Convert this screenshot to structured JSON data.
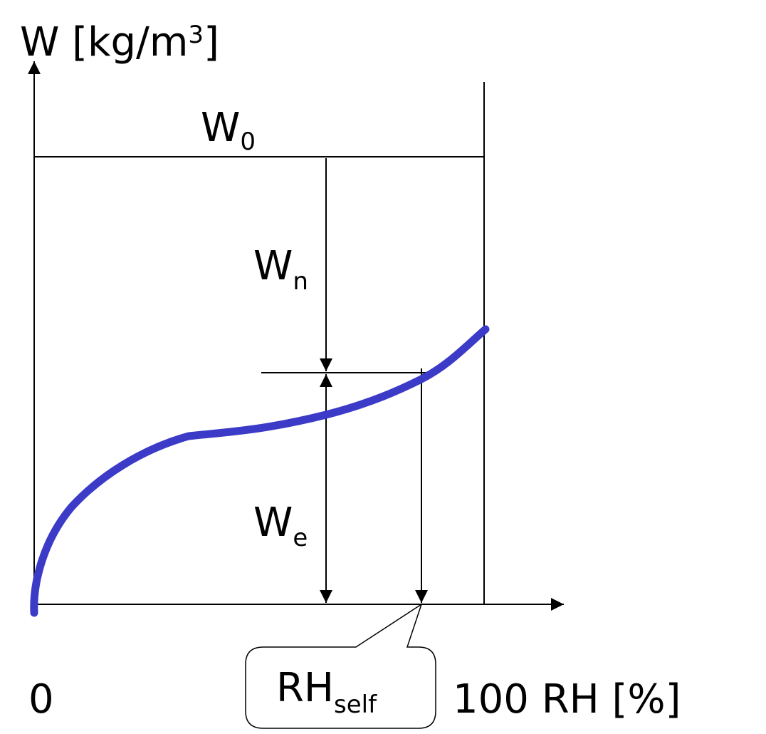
{
  "axes": {
    "y_label": {
      "text": "W [kg/m",
      "sup": "3",
      "tail": "]"
    },
    "x_origin": "0",
    "x_end": "100",
    "x_label": "RH [%]"
  },
  "labels": {
    "w0": {
      "main": "W",
      "sub": "0"
    },
    "wn": {
      "main": "W",
      "sub": "n"
    },
    "we": {
      "main": "W",
      "sub": "e"
    },
    "rh_self": {
      "main": "RH",
      "sub": "self"
    }
  }
}
